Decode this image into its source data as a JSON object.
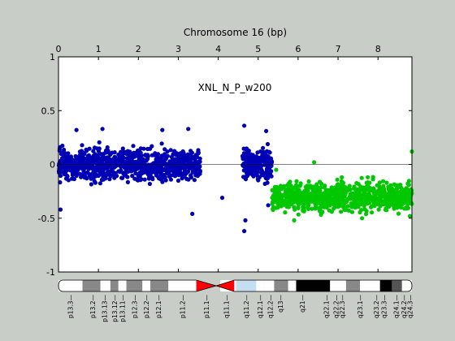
{
  "chart_data": {
    "type": "scatter",
    "title": "Chromosome 16 (bp)",
    "annotation": "XNL_N_P_w200",
    "xlabel": "Chromosome 16 (bp)",
    "ylabel": "",
    "xlim": [
      0,
      8.85
    ],
    "ylim": [
      -1,
      1
    ],
    "x_ticks": [
      0,
      1,
      2,
      3,
      4,
      5,
      6,
      7,
      8
    ],
    "y_ticks": [
      -1,
      -0.5,
      0,
      0.5,
      1
    ],
    "y_tick_labels": [
      "-1",
      "-0.5",
      "0",
      "0.5",
      "1"
    ],
    "reference_line_y": 0,
    "grid": false,
    "series": [
      {
        "color": "#0000b4",
        "segments": [
          {
            "x_start": 0.0,
            "x_end": 3.55,
            "mean": 0.0,
            "spread": 0.22
          },
          {
            "x_start": 4.6,
            "x_end": 5.35,
            "mean": 0.0,
            "spread": 0.24
          }
        ],
        "outliers": [
          {
            "x": 0.05,
            "y": -0.42
          },
          {
            "x": 0.45,
            "y": 0.32
          },
          {
            "x": 1.1,
            "y": 0.33
          },
          {
            "x": 2.6,
            "y": 0.32
          },
          {
            "x": 3.25,
            "y": 0.33
          },
          {
            "x": 3.35,
            "y": -0.46
          },
          {
            "x": 4.1,
            "y": -0.31
          },
          {
            "x": 4.65,
            "y": 0.36
          },
          {
            "x": 4.65,
            "y": -0.62
          },
          {
            "x": 4.68,
            "y": -0.52
          },
          {
            "x": 5.2,
            "y": 0.31
          },
          {
            "x": 5.25,
            "y": -0.38
          }
        ]
      },
      {
        "color": "#00c800",
        "segments": [
          {
            "x_start": 5.35,
            "x_end": 8.85,
            "mean": -0.3,
            "spread": 0.2
          }
        ],
        "outliers": [
          {
            "x": 5.45,
            "y": -0.05
          },
          {
            "x": 8.85,
            "y": 0.12
          },
          {
            "x": 8.8,
            "y": -0.48
          },
          {
            "x": 5.9,
            "y": -0.52
          },
          {
            "x": 7.6,
            "y": -0.5
          },
          {
            "x": 6.4,
            "y": 0.02
          }
        ]
      }
    ],
    "ideogram": {
      "bands": [
        {
          "start": 0.0,
          "end": 0.6,
          "stain": "gneg"
        },
        {
          "start": 0.6,
          "end": 1.05,
          "stain": "gpos50"
        },
        {
          "start": 1.05,
          "end": 1.3,
          "stain": "gneg"
        },
        {
          "start": 1.3,
          "end": 1.5,
          "stain": "gpos50"
        },
        {
          "start": 1.5,
          "end": 1.7,
          "stain": "gneg"
        },
        {
          "start": 1.7,
          "end": 2.1,
          "stain": "gpos50"
        },
        {
          "start": 2.1,
          "end": 2.3,
          "stain": "gneg"
        },
        {
          "start": 2.3,
          "end": 2.75,
          "stain": "gpos50"
        },
        {
          "start": 2.75,
          "end": 3.45,
          "stain": "gneg"
        },
        {
          "start": 3.45,
          "end": 3.95,
          "stain": "acen"
        },
        {
          "start": 3.95,
          "end": 4.4,
          "stain": "acen"
        },
        {
          "start": 4.05,
          "end": 4.45,
          "stain": "gneg"
        },
        {
          "start": 4.45,
          "end": 4.95,
          "stain": "gvar"
        },
        {
          "start": 4.95,
          "end": 5.15,
          "stain": "gneg"
        },
        {
          "start": 5.15,
          "end": 5.4,
          "stain": "gneg"
        },
        {
          "start": 5.4,
          "end": 5.75,
          "stain": "gpos50"
        },
        {
          "start": 5.75,
          "end": 5.95,
          "stain": "gneg"
        },
        {
          "start": 5.95,
          "end": 6.8,
          "stain": "gpos100"
        },
        {
          "start": 6.8,
          "end": 7.2,
          "stain": "gneg"
        },
        {
          "start": 7.2,
          "end": 7.55,
          "stain": "gpos50"
        },
        {
          "start": 7.55,
          "end": 8.05,
          "stain": "gneg"
        },
        {
          "start": 8.05,
          "end": 8.35,
          "stain": "gpos100"
        },
        {
          "start": 8.35,
          "end": 8.6,
          "stain": "gpos75"
        },
        {
          "start": 8.6,
          "end": 8.85,
          "stain": "gneg"
        }
      ],
      "band_labels": [
        {
          "pos": 0.3,
          "label": "p13.3"
        },
        {
          "pos": 0.85,
          "label": "p13.2"
        },
        {
          "pos": 1.15,
          "label": "p13.13"
        },
        {
          "pos": 1.4,
          "label": "p13.12"
        },
        {
          "pos": 1.6,
          "label": "p13.11"
        },
        {
          "pos": 1.9,
          "label": "p12.3"
        },
        {
          "pos": 2.2,
          "label": "p12.2"
        },
        {
          "pos": 2.5,
          "label": "p12.1"
        },
        {
          "pos": 3.1,
          "label": "p11.2"
        },
        {
          "pos": 3.7,
          "label": "p11.1"
        },
        {
          "pos": 4.2,
          "label": "q11.1"
        },
        {
          "pos": 4.7,
          "label": "q11.2"
        },
        {
          "pos": 5.05,
          "label": "q12.1"
        },
        {
          "pos": 5.3,
          "label": "q12.2"
        },
        {
          "pos": 5.55,
          "label": "q13"
        },
        {
          "pos": 6.1,
          "label": "q21"
        },
        {
          "pos": 6.7,
          "label": "q22.1"
        },
        {
          "pos": 6.95,
          "label": "q22.2"
        },
        {
          "pos": 7.1,
          "label": "q22.3"
        },
        {
          "pos": 7.55,
          "label": "q23.1"
        },
        {
          "pos": 7.95,
          "label": "q23.2"
        },
        {
          "pos": 8.15,
          "label": "q23.3"
        },
        {
          "pos": 8.45,
          "label": "q24.1"
        },
        {
          "pos": 8.65,
          "label": "q24.2"
        },
        {
          "pos": 8.8,
          "label": "q24.3"
        }
      ]
    }
  }
}
